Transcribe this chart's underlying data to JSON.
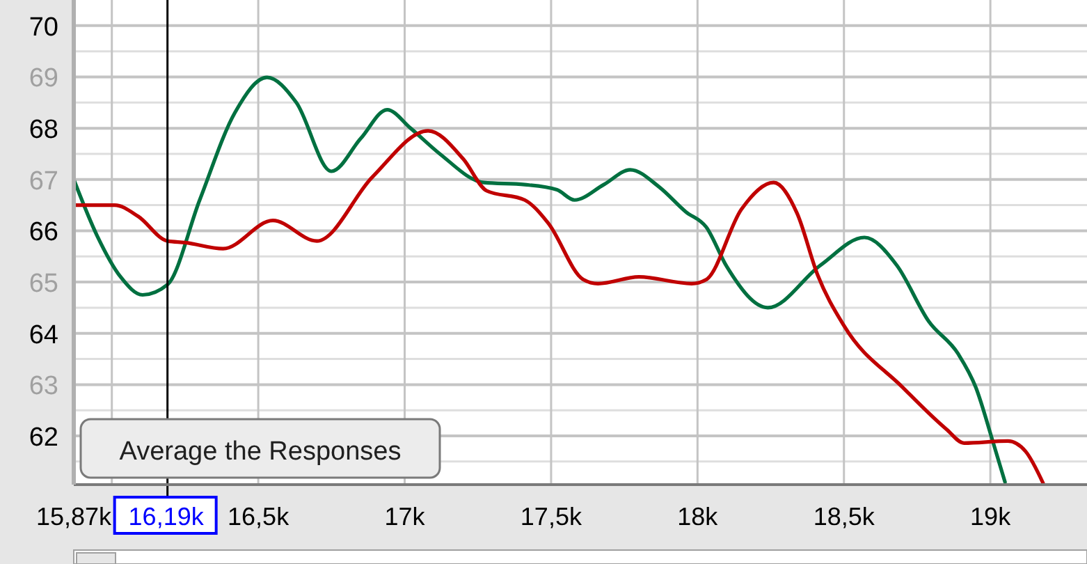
{
  "chart_data": {
    "type": "line",
    "xlim": [
      15.87,
      19.33
    ],
    "ylim": [
      61.05,
      70.5
    ],
    "xticks": [
      {
        "value": 15.87,
        "label": "15,87k"
      },
      {
        "value": 16,
        "label": null
      },
      {
        "value": 16.5,
        "label": "16,5k"
      },
      {
        "value": 17,
        "label": "17k"
      },
      {
        "value": 17.5,
        "label": "17,5k"
      },
      {
        "value": 18,
        "label": "18k"
      },
      {
        "value": 18.5,
        "label": "18,5k"
      },
      {
        "value": 19,
        "label": "19k"
      }
    ],
    "yticks": [
      {
        "value": 61.5,
        "label": null
      },
      62,
      {
        "value": 62.5,
        "label": null
      },
      63,
      {
        "value": 63.5,
        "label": null
      },
      64,
      {
        "value": 64.5,
        "label": null
      },
      65,
      {
        "value": 65.5,
        "label": null
      },
      66,
      {
        "value": 66.5,
        "label": null
      },
      67,
      {
        "value": 67.5,
        "label": null
      },
      68,
      {
        "value": 68.5,
        "label": null
      },
      69,
      {
        "value": 69.5,
        "label": null
      },
      70
    ],
    "grid": true,
    "line_style": "solid",
    "marker": "none",
    "ref_lines": [
      {
        "axis": "x",
        "value": 16.19,
        "label": "16,19k",
        "color": "#000000"
      }
    ],
    "annotations": [
      "Average the Responses"
    ],
    "series": [
      {
        "color": "#007040",
        "x": [
          15.87,
          15.95,
          16.03,
          16.105,
          16.19,
          16.3,
          16.42,
          16.53,
          16.63,
          16.75,
          16.85,
          16.94,
          17.02,
          17.12,
          17.27,
          17.41,
          17.52,
          17.58,
          17.68,
          17.77,
          17.87,
          17.96,
          18.03,
          18.1,
          18.24,
          18.42,
          18.57,
          18.68,
          18.79,
          18.89,
          18.95,
          19.01,
          19.05
        ],
        "values": [
          67.0,
          65.9,
          65.1,
          64.75,
          64.95,
          66.6,
          68.3,
          68.99,
          68.5,
          67.16,
          67.8,
          68.36,
          68.0,
          67.5,
          66.94,
          66.9,
          66.8,
          66.6,
          66.9,
          67.19,
          66.85,
          66.37,
          66.07,
          65.3,
          64.5,
          65.33,
          65.87,
          65.33,
          64.23,
          63.6,
          62.95,
          61.86,
          61.1
        ]
      },
      {
        "color": "#c00000",
        "x": [
          15.87,
          16.01,
          16.09,
          16.19,
          16.25,
          16.38,
          16.55,
          16.7,
          16.89,
          17.08,
          17.2,
          17.28,
          17.41,
          17.49,
          17.61,
          17.66,
          17.8,
          17.98,
          18.03,
          18.15,
          18.26,
          18.34,
          18.41,
          18.5,
          18.7,
          18.85,
          18.91,
          19.06,
          19.12,
          19.18
        ],
        "values": [
          66.5,
          66.5,
          66.28,
          65.8,
          65.77,
          65.65,
          66.2,
          65.8,
          67.05,
          67.95,
          67.4,
          66.78,
          66.6,
          66.15,
          65.05,
          64.97,
          65.1,
          64.97,
          65.05,
          66.42,
          66.94,
          66.34,
          65.14,
          64.15,
          62.95,
          62.13,
          61.86,
          61.9,
          61.7,
          61.08
        ]
      }
    ]
  }
}
